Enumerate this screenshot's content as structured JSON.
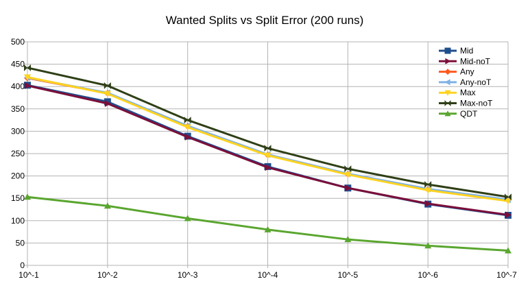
{
  "chart_data": {
    "type": "line",
    "title": "Wanted Splits vs Split Error (200 runs)",
    "xlabel": "",
    "ylabel": "",
    "categories": [
      "10^-1",
      "10^-2",
      "10^-3",
      "10^-4",
      "10^-5",
      "10^-6",
      "10^-7"
    ],
    "ylim": [
      0,
      500
    ],
    "yticks": [
      0,
      50,
      100,
      150,
      200,
      250,
      300,
      350,
      400,
      450,
      500
    ],
    "grid": "horizontal",
    "legend_position": "top-right",
    "series": [
      {
        "name": "Mid",
        "color": "#1f4e8c",
        "marker": "square",
        "values": [
          403,
          366,
          289,
          221,
          173,
          137,
          112
        ]
      },
      {
        "name": "Mid-noT",
        "color": "#7b0f3a",
        "marker": "triangle-right",
        "values": [
          402,
          362,
          287,
          219,
          173,
          138,
          113
        ]
      },
      {
        "name": "Any",
        "color": "#ff5a1f",
        "marker": "diamond",
        "values": [
          419,
          385,
          311,
          247,
          204,
          170,
          146
        ]
      },
      {
        "name": "Any-noT",
        "color": "#7fb2e6",
        "marker": "triangle-left",
        "values": [
          420,
          386,
          312,
          248,
          205,
          171,
          147
        ]
      },
      {
        "name": "Max",
        "color": "#ffd320",
        "marker": "triangle-down",
        "values": [
          421,
          384,
          309,
          246,
          203,
          168,
          144
        ]
      },
      {
        "name": "Max-noT",
        "color": "#2f3f17",
        "marker": "bowtie",
        "values": [
          442,
          402,
          325,
          262,
          216,
          181,
          153
        ]
      },
      {
        "name": "QDT",
        "color": "#5aa62f",
        "marker": "triangle-up",
        "values": [
          153,
          133,
          105,
          80,
          58,
          44,
          33
        ]
      }
    ]
  }
}
